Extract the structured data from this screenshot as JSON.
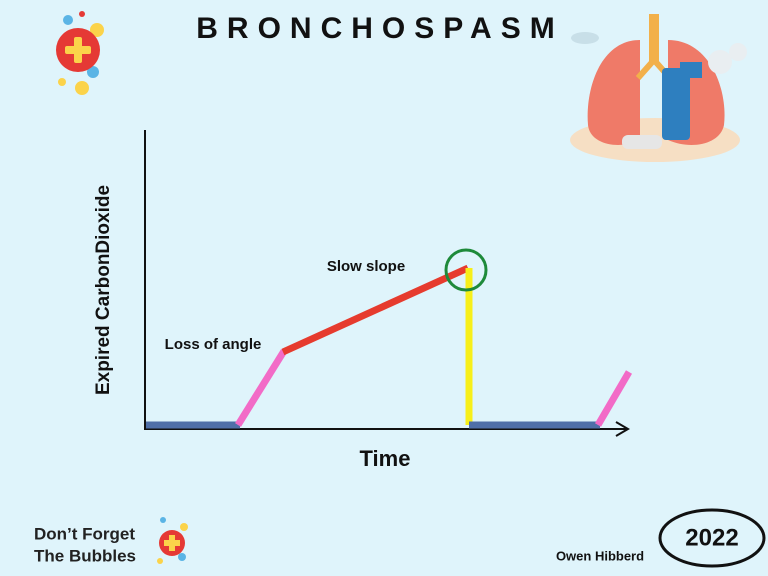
{
  "title": "BRONCHOSPASM",
  "diagram": {
    "y_axis_label": "Expired CarbonDioxide",
    "x_axis_label": "Time",
    "annotations": [
      "Loss of angle",
      "Slow slope"
    ]
  },
  "logo": {
    "lines": [
      "Don’t Forget",
      "The Bubbles"
    ]
  },
  "author": "Owen Hibberd",
  "year": "2022"
}
